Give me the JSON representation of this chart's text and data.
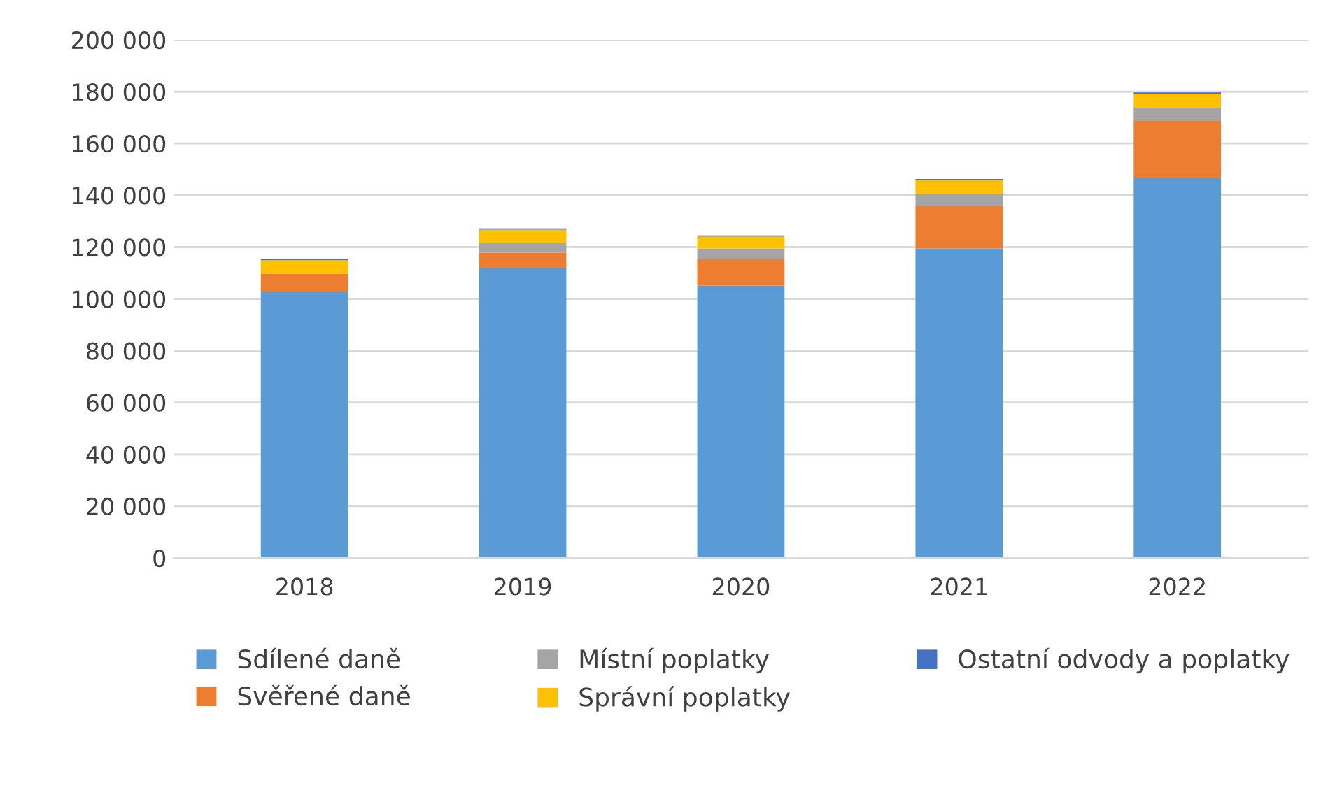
{
  "chart_data": {
    "type": "bar",
    "stacked": true,
    "categories": [
      "2018",
      "2019",
      "2020",
      "2021",
      "2022"
    ],
    "series": [
      {
        "name": "Sdílené daně",
        "color": "#5b9bd5",
        "values": [
          102800,
          111800,
          105100,
          119400,
          146700
        ]
      },
      {
        "name": "Svěřené daně",
        "color": "#ed7d31",
        "values": [
          6900,
          6000,
          10300,
          16500,
          22000
        ]
      },
      {
        "name": "Místní poplatky",
        "color": "#a5a5a5",
        "values": [
          0,
          3800,
          4000,
          4500,
          5100
        ]
      },
      {
        "name": "Správní poplatky",
        "color": "#ffc000",
        "values": [
          5200,
          5100,
          4600,
          5400,
          5400
        ]
      },
      {
        "name": "Ostatní odvody a poplatky",
        "color": "#4472c4",
        "values": [
          500,
          500,
          500,
          500,
          500
        ]
      }
    ],
    "ylim": [
      0,
      200000
    ],
    "yticks": [
      {
        "value": 0,
        "label": "0"
      },
      {
        "value": 20000,
        "label": "20 000"
      },
      {
        "value": 40000,
        "label": "40 000"
      },
      {
        "value": 60000,
        "label": "60 000"
      },
      {
        "value": 80000,
        "label": "80 000"
      },
      {
        "value": 100000,
        "label": "100 000"
      },
      {
        "value": 120000,
        "label": "120 000"
      },
      {
        "value": 140000,
        "label": "140 000"
      },
      {
        "value": 160000,
        "label": "160 000"
      },
      {
        "value": 180000,
        "label": "180 000"
      },
      {
        "value": 200000,
        "label": "200 000"
      }
    ],
    "grid": "y",
    "legend": "bottom"
  }
}
